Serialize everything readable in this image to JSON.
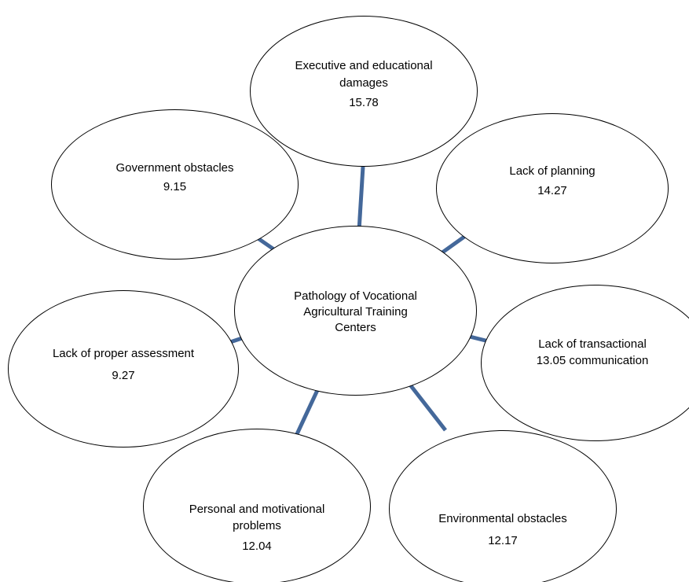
{
  "diagram": {
    "center": {
      "lines": [
        "Pathology of   Vocational",
        "Agricultural Training",
        "Centers"
      ]
    },
    "executive": {
      "lines": [
        "Executive and educational",
        "damages"
      ],
      "value": "15.78"
    },
    "planning": {
      "lines": [
        "Lack of planning"
      ],
      "value": "14.27"
    },
    "transactional": {
      "lines": [
        "Lack of transactional",
        "13.05   communication"
      ]
    },
    "environmental": {
      "lines": [
        "Environmental obstacles"
      ],
      "value": "12.17"
    },
    "personal": {
      "lines": [
        "Personal and motivational",
        "problems"
      ],
      "value": "12.04"
    },
    "assessment": {
      "lines": [
        "Lack of proper assessment"
      ],
      "value": "9.27"
    },
    "government": {
      "lines": [
        "Government obstacles"
      ],
      "value": "9.15"
    }
  },
  "colors": {
    "connector": "#44689A",
    "outline": "#000000"
  }
}
